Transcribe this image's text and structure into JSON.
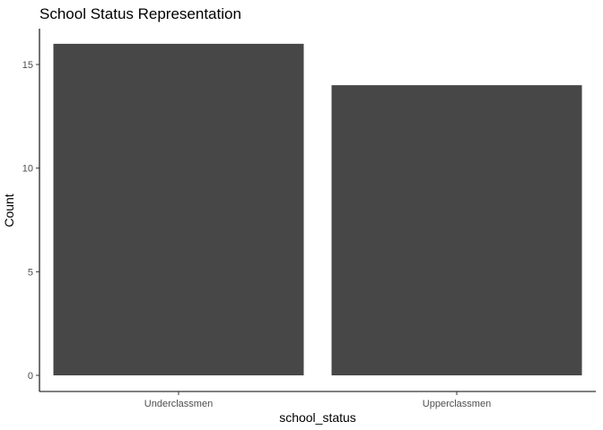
{
  "chart_data": {
    "type": "bar",
    "title": "School Status Representation",
    "xlabel": "school_status",
    "ylabel": "Count",
    "categories": [
      "Underclassmen",
      "Upperclassmen"
    ],
    "values": [
      16,
      14
    ],
    "ylim": [
      0,
      16.8
    ],
    "yticks": [
      0,
      5,
      10,
      15
    ],
    "bar_color": "#474747",
    "grid": false,
    "legend": "none"
  }
}
